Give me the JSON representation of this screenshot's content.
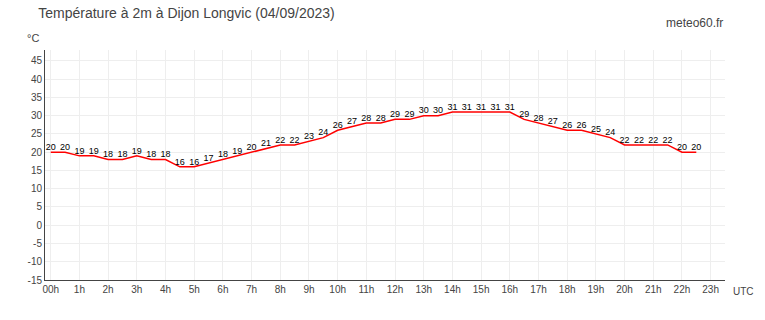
{
  "chart_data": {
    "type": "line",
    "title": "Température à 2m à Dijon Longvic (04/09/2023)",
    "xlabel": "UTC",
    "ylabel": "°C",
    "annotations": [
      "meteo60.fr"
    ],
    "x": [
      0,
      0.5,
      1,
      1.5,
      2,
      2.5,
      3,
      3.5,
      4,
      4.5,
      5,
      5.5,
      6,
      6.5,
      7,
      7.5,
      8,
      8.5,
      9,
      9.5,
      10,
      10.5,
      11,
      11.5,
      12,
      12.5,
      13,
      13.5,
      14,
      14.5,
      15,
      15.5,
      16,
      16.5,
      17,
      17.5,
      18,
      18.5,
      19,
      19.5,
      20,
      20.5,
      21,
      21.5,
      22,
      22.5
    ],
    "values": [
      20,
      20,
      19,
      19,
      18,
      18,
      19,
      18,
      18,
      16,
      16,
      17,
      18,
      19,
      20,
      21,
      22,
      22,
      23,
      24,
      26,
      27,
      28,
      28,
      29,
      29,
      30,
      30,
      31,
      31,
      31,
      31,
      31,
      29,
      28,
      27,
      26,
      26,
      25,
      24,
      22,
      22,
      22,
      22,
      20,
      20
    ],
    "color": "#ff0000",
    "data_labels": true,
    "grid": true,
    "xlim": [
      -0.2,
      23.5
    ],
    "xticks": [
      {
        "value": 0,
        "label": "00h"
      },
      {
        "value": 1,
        "label": "1h"
      },
      {
        "value": 2,
        "label": "2h"
      },
      {
        "value": 3,
        "label": "3h"
      },
      {
        "value": 4,
        "label": "4h"
      },
      {
        "value": 5,
        "label": "5h"
      },
      {
        "value": 6,
        "label": "6h"
      },
      {
        "value": 7,
        "label": "7h"
      },
      {
        "value": 8,
        "label": "8h"
      },
      {
        "value": 9,
        "label": "9h"
      },
      {
        "value": 10,
        "label": "10h"
      },
      {
        "value": 11,
        "label": "11h"
      },
      {
        "value": 12,
        "label": "12h"
      },
      {
        "value": 13,
        "label": "13h"
      },
      {
        "value": 14,
        "label": "14h"
      },
      {
        "value": 15,
        "label": "15h"
      },
      {
        "value": 16,
        "label": "16h"
      },
      {
        "value": 17,
        "label": "17h"
      },
      {
        "value": 18,
        "label": "18h"
      },
      {
        "value": 19,
        "label": "19h"
      },
      {
        "value": 20,
        "label": "20h"
      },
      {
        "value": 21,
        "label": "21h"
      },
      {
        "value": 22,
        "label": "22h"
      },
      {
        "value": 23,
        "label": "23h"
      }
    ],
    "ylim": [
      -15,
      48
    ],
    "yticks": [
      -15,
      -10,
      -5,
      0,
      5,
      10,
      15,
      20,
      25,
      30,
      35,
      40,
      45
    ]
  }
}
